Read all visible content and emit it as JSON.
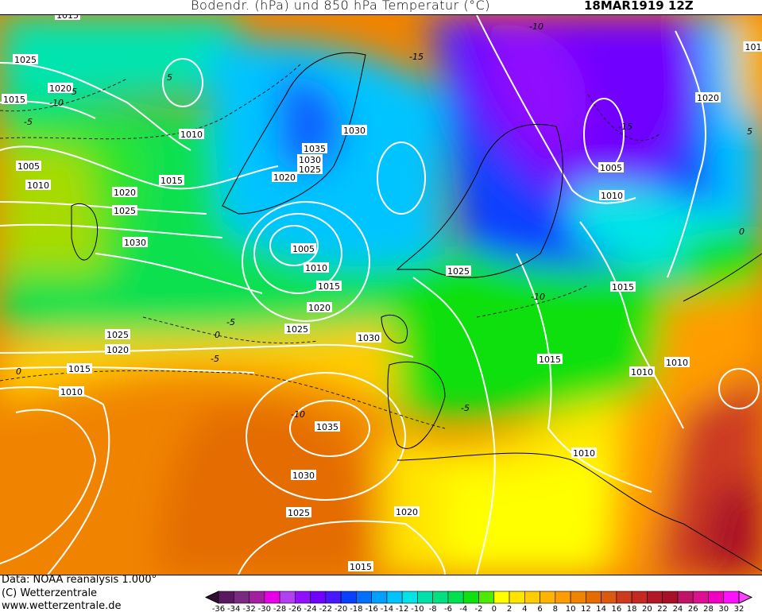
{
  "header": {
    "title": "Bodendr. (hPa) und 850 hPa Temperatur (°C)",
    "date": "18MAR1919 12Z"
  },
  "footer": {
    "data_source": "Data: NOAA reanalysis 1.000°",
    "copyright": "(C) Wetterzentrale",
    "url": "www.wetterzentrale.de"
  },
  "map": {
    "variable_fill": "850 hPa temperature (°C)",
    "contours": "surface pressure (hPa)",
    "isobar_labels": [
      "1015",
      "1025",
      "1020",
      "1015",
      "1010",
      "1005",
      "1010",
      "1015",
      "1020",
      "1025",
      "1030",
      "1035",
      "1030",
      "1025",
      "1020",
      "1030",
      "1005",
      "1010",
      "1015",
      "1020",
      "1025",
      "1030",
      "1025",
      "1020",
      "1015",
      "1010",
      "1035",
      "1030",
      "1025",
      "1020",
      "1015",
      "1025",
      "1015",
      "1015",
      "1010",
      "1010",
      "1010",
      "1005",
      "1010",
      "1020",
      "101"
    ],
    "temperature_labels": [
      "-15",
      "-10",
      "-5",
      "0",
      "-5",
      "0",
      "-5",
      "-10",
      "-15",
      "-10",
      "0",
      "5",
      "5",
      "-5",
      "-10",
      "5"
    ]
  },
  "colorbar": {
    "ticks": [
      "-36",
      "-34",
      "-32",
      "-30",
      "-28",
      "-26",
      "-24",
      "-22",
      "-20",
      "-18",
      "-16",
      "-14",
      "-12",
      "-10",
      "-8",
      "-6",
      "-4",
      "-2",
      "0",
      "2",
      "4",
      "6",
      "8",
      "10",
      "12",
      "14",
      "16",
      "18",
      "20",
      "22",
      "24",
      "26",
      "28",
      "30",
      "32"
    ],
    "colors": [
      "#5a1860",
      "#7a2a80",
      "#a020a0",
      "#e800e8",
      "#b040f0",
      "#9010ff",
      "#7000ff",
      "#4818ff",
      "#0a40ff",
      "#0070ff",
      "#00a0ff",
      "#00c4ff",
      "#00e4e8",
      "#00e0a8",
      "#00e080",
      "#00e050",
      "#10e010",
      "#50e800",
      "#ffff00",
      "#ffe400",
      "#ffcc00",
      "#ffb400",
      "#ff9c00",
      "#f08400",
      "#e46c00",
      "#dc5a10",
      "#cc3a20",
      "#c42a20",
      "#b41828",
      "#a81028",
      "#c01468",
      "#dc1090",
      "#f000c0",
      "#ff10ff"
    ],
    "under_color": "#301030",
    "over_color": "#ff40ff"
  }
}
